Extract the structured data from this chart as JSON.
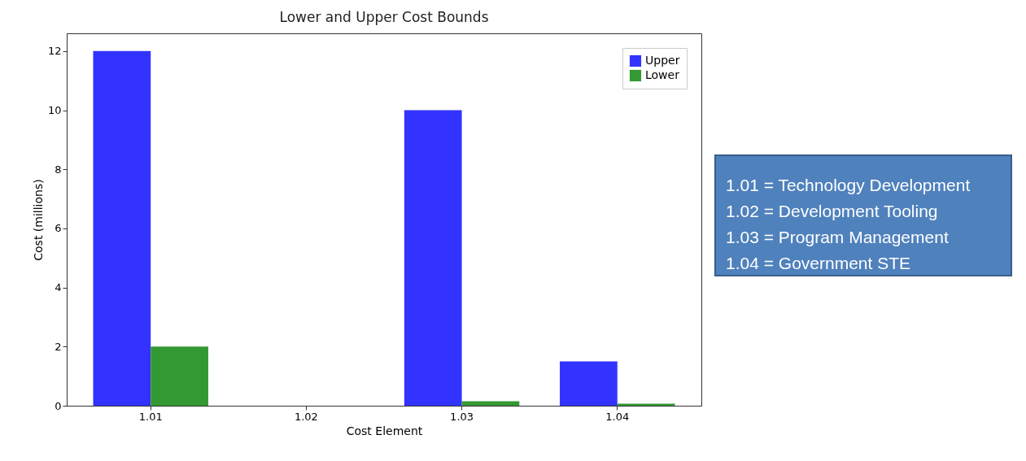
{
  "chart_data": {
    "type": "bar",
    "title": "Lower and Upper Cost Bounds",
    "xlabel": "Cost Element",
    "ylabel": "Cost (millions)",
    "categories": [
      "1.01",
      "1.02",
      "1.03",
      "1.04"
    ],
    "series": [
      {
        "name": "Upper",
        "color": "#3333ff",
        "values": [
          12,
          0,
          10,
          1.5
        ]
      },
      {
        "name": "Lower",
        "color": "#339933",
        "values": [
          2,
          0,
          0.15,
          0.07
        ]
      }
    ],
    "ylim": [
      0,
      12.6
    ],
    "yticks": [
      0,
      2,
      4,
      6,
      8,
      10,
      12
    ],
    "grid": false,
    "legend": "top right",
    "annotations": [
      "1.01 = Technology Development",
      "1.02 = Development Tooling",
      "1.03 = Program Management",
      "1.04 = Government STE"
    ]
  }
}
